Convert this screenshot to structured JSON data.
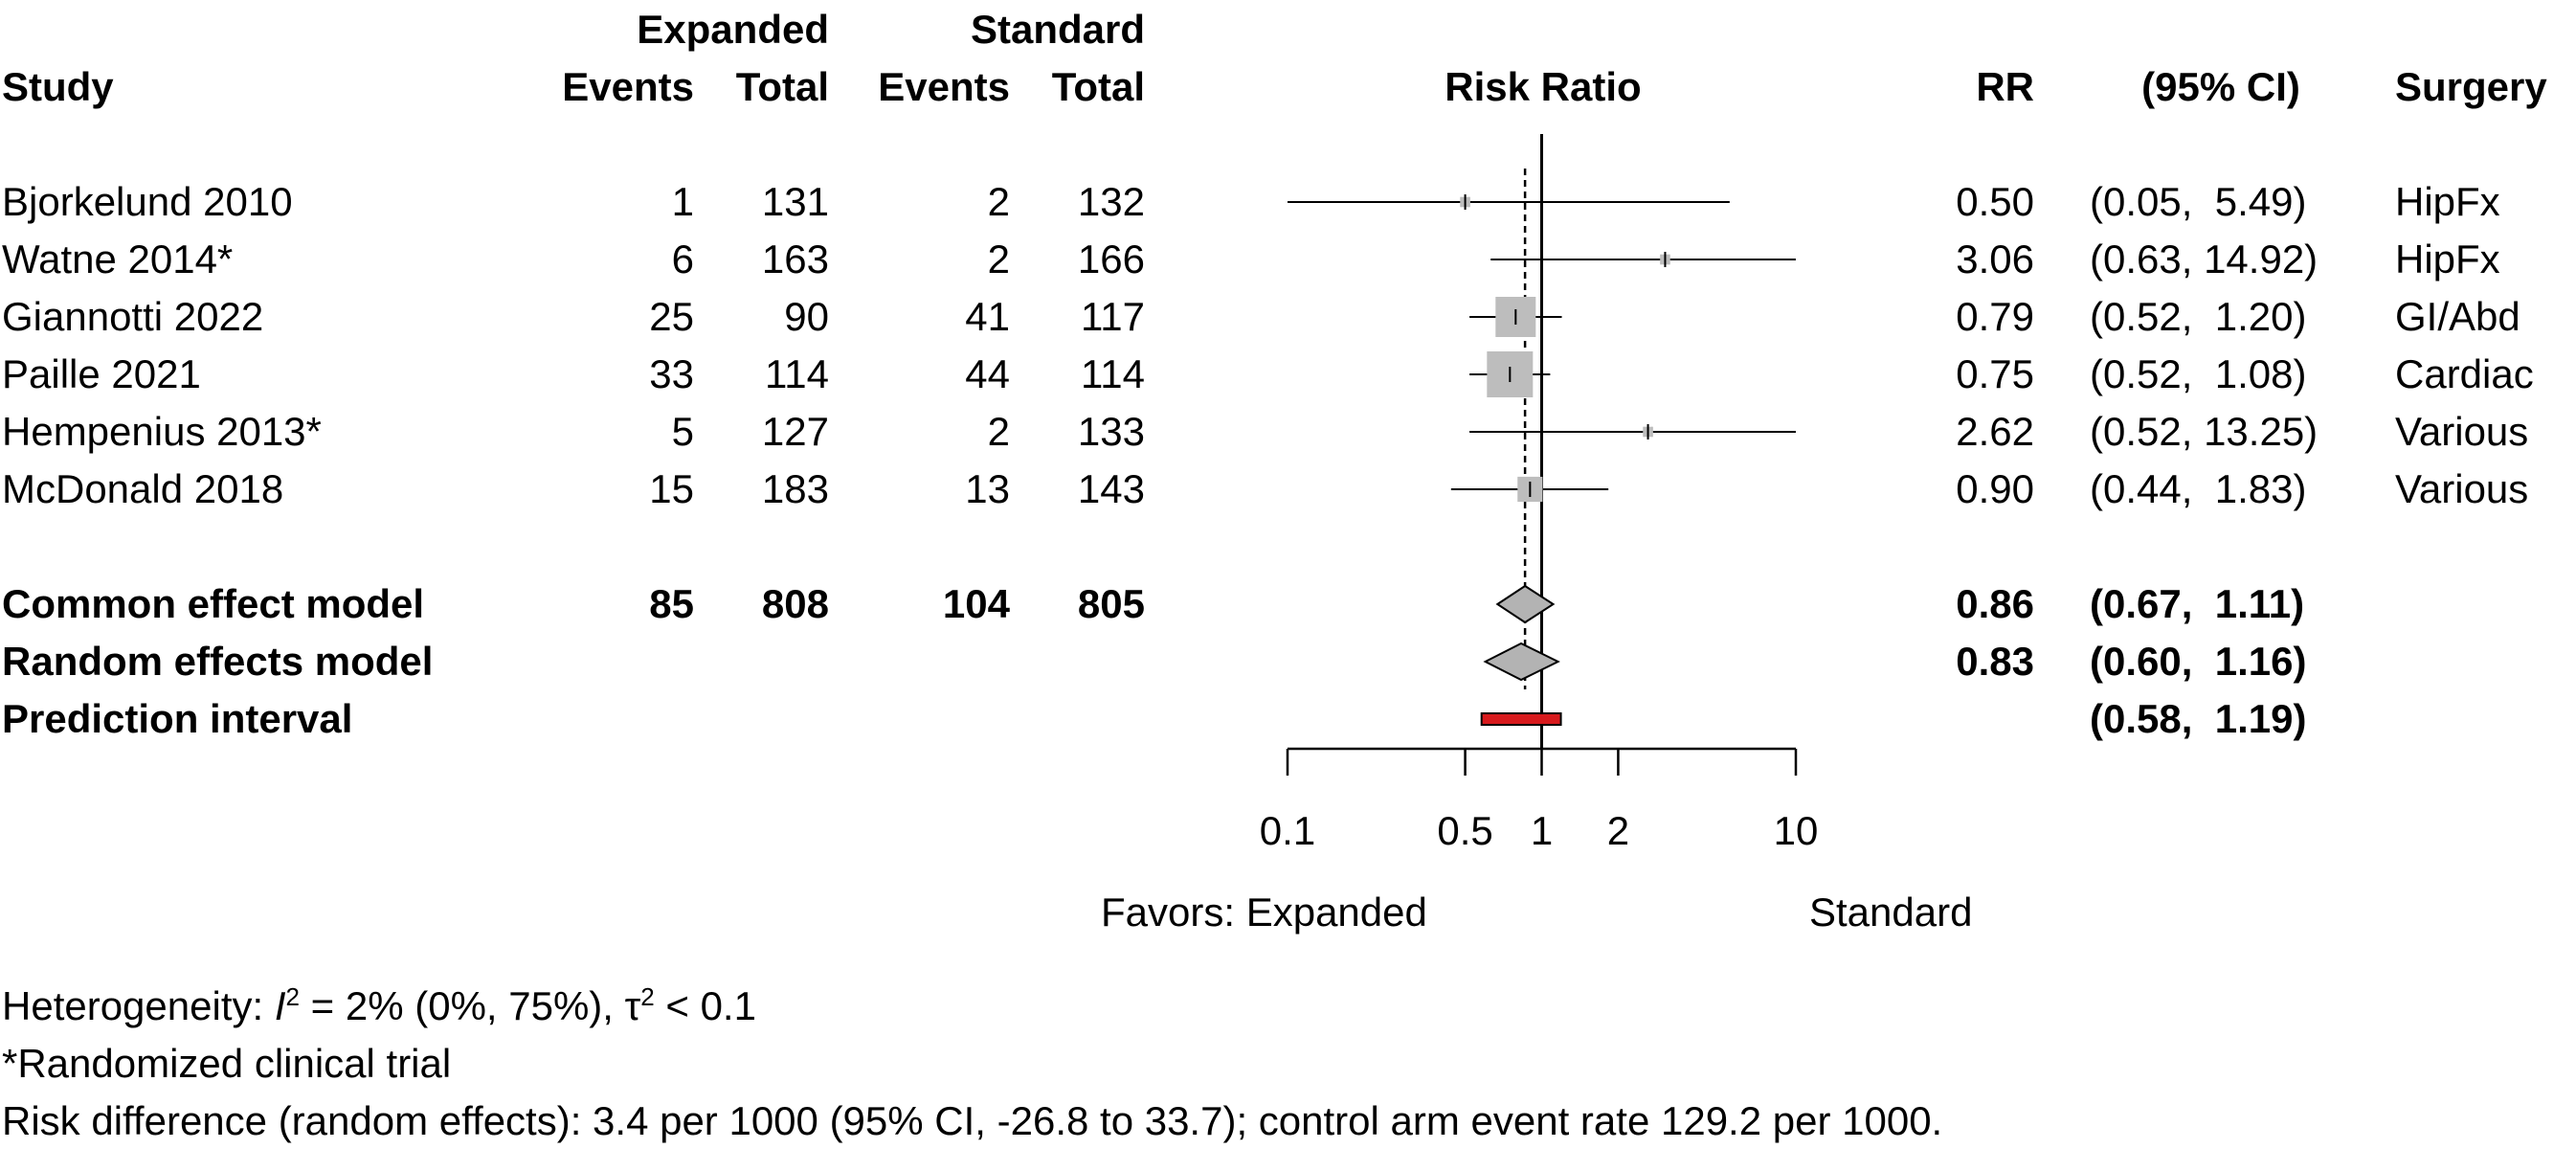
{
  "headers": {
    "study": "Study",
    "expanded_group": "Expanded",
    "standard_group": "Standard",
    "events": "Events",
    "total": "Total",
    "plot": "Risk Ratio",
    "rr": "RR",
    "ci": "(95% CI)",
    "surgery": "Surgery"
  },
  "studies": [
    {
      "name": "Bjorkelund 2010",
      "exp_events": "1",
      "exp_total": "131",
      "std_events": "2",
      "std_total": "132",
      "rr": "0.50",
      "ci": "(0.05,  5.49)",
      "surgery": "HipFx"
    },
    {
      "name": "Watne 2014*",
      "exp_events": "6",
      "exp_total": "163",
      "std_events": "2",
      "std_total": "166",
      "rr": "3.06",
      "ci": "(0.63, 14.92)",
      "surgery": "HipFx"
    },
    {
      "name": "Giannotti 2022",
      "exp_events": "25",
      "exp_total": "90",
      "std_events": "41",
      "std_total": "117",
      "rr": "0.79",
      "ci": "(0.52,  1.20)",
      "surgery": "GI/Abd"
    },
    {
      "name": "Paille 2021",
      "exp_events": "33",
      "exp_total": "114",
      "std_events": "44",
      "std_total": "114",
      "rr": "0.75",
      "ci": "(0.52,  1.08)",
      "surgery": "Cardiac"
    },
    {
      "name": "Hempenius 2013*",
      "exp_events": "5",
      "exp_total": "127",
      "std_events": "2",
      "std_total": "133",
      "rr": "2.62",
      "ci": "(0.52, 13.25)",
      "surgery": "Various"
    },
    {
      "name": "McDonald 2018",
      "exp_events": "15",
      "exp_total": "183",
      "std_events": "13",
      "std_total": "143",
      "rr": "0.90",
      "ci": "(0.44,  1.83)",
      "surgery": "Various"
    }
  ],
  "summary": {
    "common": {
      "label": "Common effect model",
      "exp_events": "85",
      "exp_total": "808",
      "std_events": "104",
      "std_total": "805",
      "rr": "0.86",
      "ci": "(0.67,  1.11)"
    },
    "random": {
      "label": "Random effects model",
      "rr": "0.83",
      "ci": "(0.60,  1.16)"
    },
    "prediction": {
      "label": "Prediction interval",
      "ci": "(0.58,  1.19)"
    }
  },
  "axis_label_left": "Favors: Expanded",
  "axis_label_right": "Standard",
  "footnotes": {
    "heterogeneity_prefix": "Heterogeneity: ",
    "i2_symbol": "I",
    "i2_sup": "2",
    "i2_value": " = 2% (0%, 75%), ",
    "tau_symbol": "τ",
    "tau_sup": "2",
    "tau_value": " < 0.1",
    "rct": "*Randomized clinical trial",
    "risk_difference": "Risk difference (random effects): 3.4 per 1000 (95% CI, -26.8 to 33.7); control arm event rate 129.2 per 1000."
  },
  "colors": {
    "square": "#bdbdbd",
    "diamond": "#b3b3b3",
    "prediction": "#d7191c",
    "line": "#000000"
  },
  "chart_data": {
    "type": "forest",
    "x_scale": "log",
    "xlim": [
      0.1,
      10
    ],
    "ticks": [
      0.1,
      0.5,
      1,
      2,
      10
    ],
    "tick_labels": [
      "0.1",
      "0.5",
      "1",
      "2",
      "10"
    ],
    "reference_line": 1,
    "common_effect_line": 0.86,
    "studies": [
      {
        "name": "Bjorkelund 2010",
        "rr": 0.5,
        "lower": 0.05,
        "upper": 5.49,
        "weight": 0.023
      },
      {
        "name": "Watne 2014*",
        "rr": 3.06,
        "lower": 0.63,
        "upper": 14.92,
        "weight": 0.023
      },
      {
        "name": "Giannotti 2022",
        "rr": 0.79,
        "lower": 0.52,
        "upper": 1.2,
        "weight": 0.36
      },
      {
        "name": "Paille 2021",
        "rr": 0.75,
        "lower": 0.52,
        "upper": 1.08,
        "weight": 0.47
      },
      {
        "name": "Hempenius 2013*",
        "rr": 2.62,
        "lower": 0.52,
        "upper": 13.25,
        "weight": 0.023
      },
      {
        "name": "McDonald 2018",
        "rr": 0.9,
        "lower": 0.44,
        "upper": 1.83,
        "weight": 0.14
      }
    ],
    "common_effect": {
      "rr": 0.86,
      "lower": 0.67,
      "upper": 1.11
    },
    "random_effects": {
      "rr": 0.83,
      "lower": 0.6,
      "upper": 1.16
    },
    "prediction_interval": {
      "lower": 0.58,
      "upper": 1.19
    }
  }
}
